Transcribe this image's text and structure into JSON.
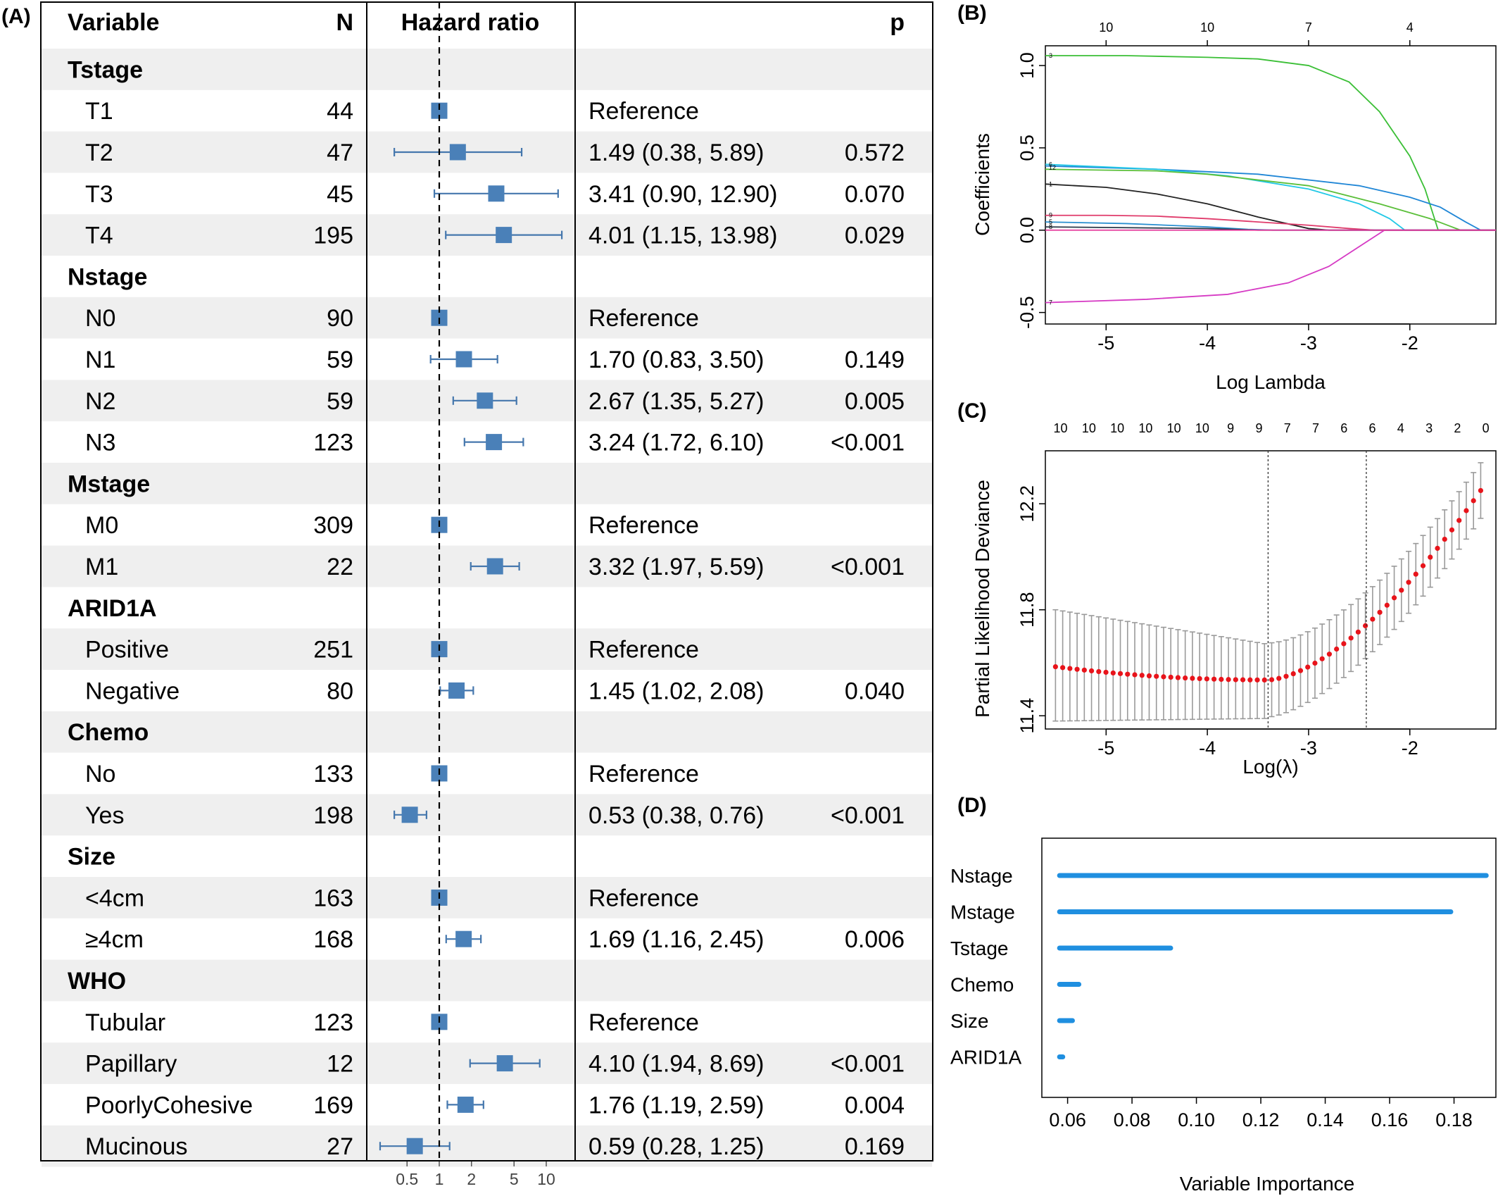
{
  "panels": {
    "A": {
      "label": "(A)",
      "headers": {
        "variable": "Variable",
        "n": "N",
        "hr": "Hazard ratio",
        "p": "p"
      },
      "x_ticks": [
        "0.5",
        "1",
        "2",
        "5",
        "10"
      ],
      "reference_line": 1,
      "rows": [
        {
          "type": "group",
          "label": "Tstage"
        },
        {
          "type": "item",
          "label": "T1",
          "n": "44",
          "hr": 1,
          "text": "Reference",
          "p": ""
        },
        {
          "type": "item",
          "label": "T2",
          "n": "47",
          "hr": 1.49,
          "lo": 0.38,
          "hi": 5.89,
          "text": "1.49 (0.38, 5.89)",
          "p": "0.572"
        },
        {
          "type": "item",
          "label": "T3",
          "n": "45",
          "hr": 3.41,
          "lo": 0.9,
          "hi": 12.9,
          "text": "3.41 (0.90, 12.90)",
          "p": "0.070"
        },
        {
          "type": "item",
          "label": "T4",
          "n": "195",
          "hr": 4.01,
          "lo": 1.15,
          "hi": 13.98,
          "text": "4.01 (1.15, 13.98)",
          "p": "0.029"
        },
        {
          "type": "group",
          "label": "Nstage"
        },
        {
          "type": "item",
          "label": "N0",
          "n": "90",
          "hr": 1,
          "text": "Reference",
          "p": ""
        },
        {
          "type": "item",
          "label": "N1",
          "n": "59",
          "hr": 1.7,
          "lo": 0.83,
          "hi": 3.5,
          "text": "1.70 (0.83, 3.50)",
          "p": "0.149"
        },
        {
          "type": "item",
          "label": "N2",
          "n": "59",
          "hr": 2.67,
          "lo": 1.35,
          "hi": 5.27,
          "text": "2.67 (1.35, 5.27)",
          "p": "0.005"
        },
        {
          "type": "item",
          "label": "N3",
          "n": "123",
          "hr": 3.24,
          "lo": 1.72,
          "hi": 6.1,
          "text": "3.24 (1.72, 6.10)",
          "p": "<0.001"
        },
        {
          "type": "group",
          "label": "Mstage"
        },
        {
          "type": "item",
          "label": "M0",
          "n": "309",
          "hr": 1,
          "text": "Reference",
          "p": ""
        },
        {
          "type": "item",
          "label": "M1",
          "n": "22",
          "hr": 3.32,
          "lo": 1.97,
          "hi": 5.59,
          "text": "3.32 (1.97, 5.59)",
          "p": "<0.001"
        },
        {
          "type": "group",
          "label": "ARID1A"
        },
        {
          "type": "item",
          "label": "Positive",
          "n": "251",
          "hr": 1,
          "text": "Reference",
          "p": ""
        },
        {
          "type": "item",
          "label": "Negative",
          "n": "80",
          "hr": 1.45,
          "lo": 1.02,
          "hi": 2.08,
          "text": "1.45 (1.02, 2.08)",
          "p": "0.040"
        },
        {
          "type": "group",
          "label": "Chemo"
        },
        {
          "type": "item",
          "label": "No",
          "n": "133",
          "hr": 1,
          "text": "Reference",
          "p": ""
        },
        {
          "type": "item",
          "label": "Yes",
          "n": "198",
          "hr": 0.53,
          "lo": 0.38,
          "hi": 0.76,
          "text": "0.53 (0.38, 0.76)",
          "p": "<0.001"
        },
        {
          "type": "group",
          "label": "Size"
        },
        {
          "type": "item",
          "label": "<4cm",
          "n": "163",
          "hr": 1,
          "text": "Reference",
          "p": ""
        },
        {
          "type": "item",
          "label": "≥4cm",
          "n": "168",
          "hr": 1.69,
          "lo": 1.16,
          "hi": 2.45,
          "text": "1.69 (1.16, 2.45)",
          "p": "0.006"
        },
        {
          "type": "group",
          "label": "WHO"
        },
        {
          "type": "item",
          "label": "Tubular",
          "n": "123",
          "hr": 1,
          "text": "Reference",
          "p": ""
        },
        {
          "type": "item",
          "label": "Papillary",
          "n": "12",
          "hr": 4.1,
          "lo": 1.94,
          "hi": 8.69,
          "text": "4.10 (1.94, 8.69)",
          "p": "<0.001"
        },
        {
          "type": "item",
          "label": "PoorlyCohesive",
          "n": "169",
          "hr": 1.76,
          "lo": 1.19,
          "hi": 2.59,
          "text": "1.76 (1.19, 2.59)",
          "p": "0.004"
        },
        {
          "type": "item",
          "label": "Mucinous",
          "n": "27",
          "hr": 0.59,
          "lo": 0.28,
          "hi": 1.25,
          "text": "0.59 (0.28, 1.25)",
          "p": "0.169"
        }
      ]
    },
    "B": {
      "label": "(B)",
      "xlabel": "Log Lambda",
      "ylabel": "Coefficients",
      "x_ticks": [
        -5,
        -4,
        -3,
        -2
      ],
      "y_ticks": [
        -0.5,
        0.0,
        0.5,
        1.0
      ],
      "y_tick_labels": [
        "-0.5",
        "0.0",
        "0.5",
        "1.0"
      ],
      "xlim": [
        -5.6,
        -1.15
      ],
      "ylim": [
        -0.57,
        1.12
      ],
      "top_axis": [
        {
          "x": -5,
          "label": "10"
        },
        {
          "x": -4,
          "label": "10"
        },
        {
          "x": -3,
          "label": "7"
        },
        {
          "x": -2,
          "label": "4"
        }
      ],
      "line_labels": [
        {
          "y": 1.06,
          "label": "3"
        },
        {
          "y": 0.4,
          "label": "6"
        },
        {
          "y": 0.38,
          "label": "12"
        },
        {
          "y": 0.28,
          "label": "1"
        },
        {
          "y": 0.09,
          "label": "9"
        },
        {
          "y": 0.05,
          "label": "5"
        },
        {
          "y": 0.02,
          "label": "8"
        },
        {
          "y": -0.44,
          "label": "7"
        }
      ],
      "series": [
        {
          "color": "#3bbf36",
          "points": [
            [
              -5.6,
              1.06
            ],
            [
              -4.8,
              1.06
            ],
            [
              -4.0,
              1.05
            ],
            [
              -3.5,
              1.04
            ],
            [
              -3.0,
              1.0
            ],
            [
              -2.6,
              0.9
            ],
            [
              -2.3,
              0.72
            ],
            [
              -2.0,
              0.45
            ],
            [
              -1.85,
              0.25
            ],
            [
              -1.72,
              0.0
            ]
          ]
        },
        {
          "color": "#1f86d6",
          "points": [
            [
              -5.6,
              0.39
            ],
            [
              -4.5,
              0.37
            ],
            [
              -3.5,
              0.34
            ],
            [
              -2.5,
              0.27
            ],
            [
              -2.0,
              0.2
            ],
            [
              -1.7,
              0.14
            ],
            [
              -1.45,
              0.05
            ],
            [
              -1.3,
              0.0
            ]
          ]
        },
        {
          "color": "#22c8e6",
          "points": [
            [
              -5.6,
              0.4
            ],
            [
              -4.5,
              0.37
            ],
            [
              -3.8,
              0.33
            ],
            [
              -3.0,
              0.25
            ],
            [
              -2.5,
              0.16
            ],
            [
              -2.2,
              0.07
            ],
            [
              -2.05,
              0.0
            ]
          ]
        },
        {
          "color": "#5bbf3a",
          "points": [
            [
              -5.6,
              0.37
            ],
            [
              -4.5,
              0.36
            ],
            [
              -4.0,
              0.34
            ],
            [
              -3.0,
              0.27
            ],
            [
              -2.3,
              0.16
            ],
            [
              -1.8,
              0.07
            ],
            [
              -1.5,
              0.0
            ]
          ]
        },
        {
          "color": "#222222",
          "points": [
            [
              -5.6,
              0.28
            ],
            [
              -5.0,
              0.26
            ],
            [
              -4.5,
              0.22
            ],
            [
              -4.0,
              0.16
            ],
            [
              -3.5,
              0.08
            ],
            [
              -3.0,
              0.01
            ],
            [
              -2.8,
              0.0
            ]
          ]
        },
        {
          "color": "#e03b6b",
          "points": [
            [
              -5.6,
              0.09
            ],
            [
              -5.0,
              0.09
            ],
            [
              -4.5,
              0.085
            ],
            [
              -4.0,
              0.07
            ],
            [
              -3.5,
              0.05
            ],
            [
              -3.0,
              0.03
            ],
            [
              -2.6,
              0.01
            ],
            [
              -2.35,
              0.0
            ]
          ]
        },
        {
          "color": "#2a8fd0",
          "points": [
            [
              -5.6,
              0.05
            ],
            [
              -4.8,
              0.04
            ],
            [
              -4.0,
              0.02
            ],
            [
              -3.6,
              0.005
            ],
            [
              -3.35,
              0.0
            ]
          ]
        },
        {
          "color": "#2b3a4a",
          "points": [
            [
              -5.6,
              0.02
            ],
            [
              -4.8,
              0.015
            ],
            [
              -4.0,
              0.01
            ],
            [
              -3.5,
              0.0
            ]
          ]
        },
        {
          "color": "#d63ac4",
          "points": [
            [
              -5.6,
              -0.44
            ],
            [
              -4.6,
              -0.42
            ],
            [
              -3.8,
              -0.39
            ],
            [
              -3.2,
              -0.32
            ],
            [
              -2.8,
              -0.22
            ],
            [
              -2.5,
              -0.1
            ],
            [
              -2.25,
              0.0
            ]
          ]
        },
        {
          "color": "#e53a9c",
          "points": [
            [
              -5.6,
              0.0
            ],
            [
              -1.15,
              0.0
            ]
          ]
        }
      ]
    },
    "C": {
      "label": "(C)",
      "xlabel": "Log(λ)",
      "ylabel": "Partial Likelihood Deviance",
      "x_ticks": [
        -5,
        -4,
        -3,
        -2
      ],
      "y_ticks": [
        11.4,
        11.8,
        12.2
      ],
      "y_tick_labels": [
        "11.4",
        "11.8",
        "12.2"
      ],
      "xlim": [
        -5.6,
        -1.15
      ],
      "ylim": [
        11.35,
        12.4
      ],
      "top_labels": [
        "10",
        "10",
        "10",
        "10",
        "10",
        "10",
        "9",
        "9",
        "7",
        "7",
        "6",
        "6",
        "4",
        "3",
        "2",
        "0"
      ],
      "top_range": [
        -5.45,
        -1.25
      ],
      "vlines": [
        -3.4,
        -2.43
      ],
      "curve": {
        "x_range": [
          -5.5,
          -1.3
        ],
        "n": 60,
        "min_x": -3.4,
        "min_y": 11.535,
        "start_y": 11.585,
        "end_y": 12.25
      },
      "err_low_start": 11.38,
      "err_high_start": 11.8
    },
    "D": {
      "label": "(D)",
      "xlabel": "Variable Importance",
      "x_ticks": [
        0.06,
        0.08,
        0.1,
        0.12,
        0.14,
        0.16,
        0.18
      ],
      "x_tick_labels": [
        "0.06",
        "0.08",
        "0.10",
        "0.12",
        "0.14",
        "0.16",
        "0.18"
      ],
      "xlim": [
        0.052,
        0.193
      ],
      "bars": [
        {
          "label": "Nstage",
          "value": 0.19
        },
        {
          "label": "Mstage",
          "value": 0.179
        },
        {
          "label": "Tstage",
          "value": 0.092
        },
        {
          "label": "Chemo",
          "value": 0.0635
        },
        {
          "label": "Size",
          "value": 0.0615
        },
        {
          "label": "ARID1A",
          "value": 0.0585
        }
      ],
      "start": 0.0575
    }
  },
  "chart_data": [
    {
      "type": "table",
      "title": "",
      "xlabel": "",
      "ylabel": "Hazard ratio",
      "note": "forest plot",
      "log_scale": true
    },
    {
      "type": "line",
      "xlabel": "Log Lambda",
      "ylabel": "Coefficients",
      "xlim": [
        -5.6,
        -1.15
      ],
      "ylim": [
        -0.57,
        1.12
      ]
    },
    {
      "type": "scatter",
      "xlabel": "Log(λ)",
      "ylabel": "Partial Likelihood Deviance",
      "xlim": [
        -5.6,
        -1.15
      ],
      "ylim": [
        11.35,
        12.4
      ]
    },
    {
      "type": "bar",
      "xlabel": "Variable Importance",
      "categories": [
        "Nstage",
        "Mstage",
        "Tstage",
        "Chemo",
        "Size",
        "ARID1A"
      ],
      "values": [
        0.19,
        0.179,
        0.092,
        0.0635,
        0.0615,
        0.0585
      ]
    }
  ]
}
